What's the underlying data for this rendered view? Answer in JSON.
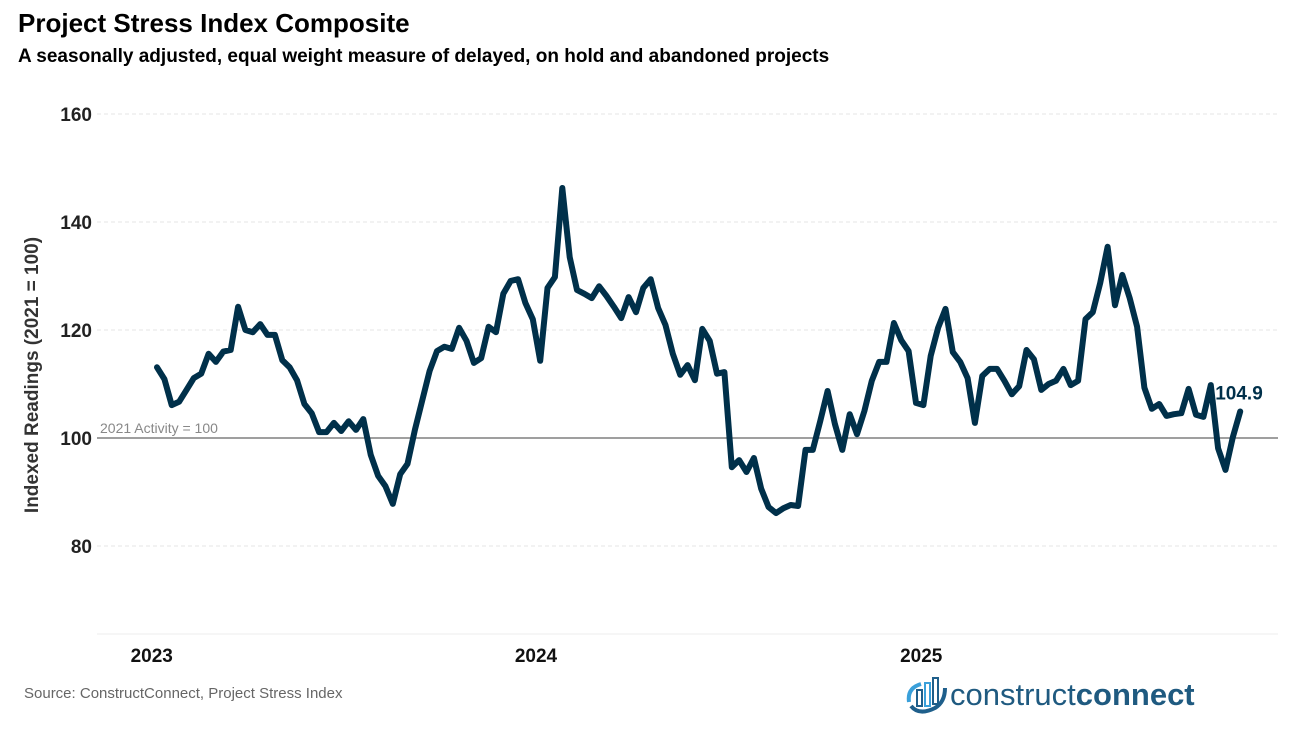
{
  "chart_data": {
    "type": "line",
    "title": "Project Stress Index Composite",
    "subtitle": "A seasonally adjusted, equal weight measure of delayed, on hold and abandoned projects",
    "xlabel": "",
    "ylabel": "Indexed Readings (2021 = 100)",
    "ylim": [
      62,
      162
    ],
    "yticks": [
      80,
      100,
      120,
      140,
      160
    ],
    "xticks": [
      "2023",
      "2024",
      "2025"
    ],
    "grid": true,
    "reference_line": {
      "value": 100,
      "label": "2021 Activity = 100"
    },
    "last_value_label": "104.9",
    "line_color": "#00304a",
    "x": [
      "2023-01-06",
      "2023-01-13",
      "2023-01-20",
      "2023-01-27",
      "2023-02-03",
      "2023-02-10",
      "2023-02-17",
      "2023-02-24",
      "2023-03-03",
      "2023-03-10",
      "2023-03-17",
      "2023-03-24",
      "2023-03-31",
      "2023-04-07",
      "2023-04-14",
      "2023-04-21",
      "2023-04-28",
      "2023-05-05",
      "2023-05-12",
      "2023-05-19",
      "2023-05-26",
      "2023-06-02",
      "2023-06-09",
      "2023-06-16",
      "2023-06-23",
      "2023-06-30",
      "2023-07-07",
      "2023-07-14",
      "2023-07-21",
      "2023-07-28",
      "2023-08-04",
      "2023-08-11",
      "2023-08-18",
      "2023-08-25",
      "2023-09-01",
      "2023-09-08",
      "2023-09-15",
      "2023-09-22",
      "2023-09-29",
      "2023-10-06",
      "2023-10-13",
      "2023-10-20",
      "2023-10-27",
      "2023-11-03",
      "2023-11-10",
      "2023-11-17",
      "2023-11-24",
      "2023-12-01",
      "2023-12-08",
      "2023-12-15",
      "2023-12-22",
      "2023-12-29",
      "2024-01-05",
      "2024-01-12",
      "2024-01-19",
      "2024-01-26",
      "2024-02-02",
      "2024-02-09",
      "2024-02-16",
      "2024-02-23",
      "2024-03-01",
      "2024-03-08",
      "2024-03-15",
      "2024-03-22",
      "2024-03-29",
      "2024-04-05",
      "2024-04-12",
      "2024-04-19",
      "2024-04-26",
      "2024-05-03",
      "2024-05-10",
      "2024-05-17",
      "2024-05-24",
      "2024-05-31",
      "2024-06-07",
      "2024-06-14",
      "2024-06-21",
      "2024-06-28",
      "2024-07-05",
      "2024-07-12",
      "2024-07-19",
      "2024-07-26",
      "2024-08-02",
      "2024-08-09",
      "2024-08-16",
      "2024-08-23",
      "2024-08-30",
      "2024-09-06",
      "2024-09-13",
      "2024-09-20",
      "2024-09-27",
      "2024-10-04",
      "2024-10-11",
      "2024-10-18",
      "2024-10-25",
      "2024-11-01",
      "2024-11-08",
      "2024-11-15",
      "2024-11-22",
      "2024-11-29",
      "2024-12-06",
      "2024-12-13",
      "2024-12-20",
      "2024-12-27",
      "2025-01-03",
      "2025-01-10",
      "2025-01-17",
      "2025-01-24",
      "2025-01-31",
      "2025-02-07",
      "2025-02-14",
      "2025-02-21",
      "2025-02-28",
      "2025-03-07",
      "2025-03-14",
      "2025-03-21",
      "2025-03-28",
      "2025-04-04",
      "2025-04-11",
      "2025-04-18",
      "2025-04-25",
      "2025-05-02",
      "2025-05-09",
      "2025-05-16",
      "2025-05-23",
      "2025-05-30",
      "2025-06-06",
      "2025-06-13",
      "2025-06-20",
      "2025-06-27",
      "2025-07-04",
      "2025-07-11",
      "2025-07-18",
      "2025-07-25",
      "2025-08-01",
      "2025-08-08",
      "2025-08-15",
      "2025-08-22",
      "2025-08-29",
      "2025-09-05",
      "2025-09-12",
      "2025-09-19",
      "2025-09-26",
      "2025-10-03",
      "2025-10-10",
      "2025-10-17",
      "2025-10-24",
      "2025-10-31"
    ],
    "values": [
      113.1,
      110.9,
      106.1,
      106.7,
      108.9,
      111.1,
      111.9,
      115.6,
      114.1,
      116.0,
      116.3,
      124.3,
      120.0,
      119.6,
      121.1,
      119.1,
      119.1,
      114.4,
      113.1,
      110.7,
      106.3,
      104.6,
      101.1,
      101.1,
      102.8,
      101.3,
      103.1,
      101.5,
      103.5,
      96.9,
      93.0,
      91.1,
      87.8,
      93.3,
      95.2,
      101.5,
      107.0,
      112.4,
      116.1,
      116.9,
      116.5,
      120.4,
      118.0,
      113.9,
      114.8,
      120.6,
      119.6,
      126.7,
      129.1,
      129.4,
      125.0,
      122.0,
      114.3,
      127.8,
      129.8,
      146.3,
      133.5,
      127.4,
      126.7,
      125.9,
      128.1,
      126.3,
      124.3,
      122.2,
      126.1,
      123.3,
      127.8,
      129.4,
      124.1,
      120.9,
      115.6,
      111.7,
      113.5,
      110.7,
      120.2,
      118.0,
      111.9,
      112.2,
      94.6,
      95.9,
      93.7,
      96.3,
      90.6,
      87.2,
      86.1,
      87.0,
      87.6,
      87.4,
      97.8,
      97.8,
      103.1,
      108.7,
      102.6,
      97.8,
      104.4,
      100.7,
      105.0,
      110.6,
      114.1,
      114.1,
      121.3,
      118.1,
      116.1,
      106.5,
      106.1,
      115.2,
      120.4,
      123.9,
      115.9,
      114.1,
      111.1,
      102.8,
      111.5,
      112.8,
      112.8,
      110.6,
      108.1,
      109.6,
      116.3,
      114.6,
      108.9,
      110.0,
      110.6,
      112.8,
      109.8,
      110.6,
      122.0,
      123.3,
      128.7,
      135.4,
      124.6,
      130.2,
      125.9,
      120.6,
      109.3,
      105.4,
      106.3,
      104.1,
      104.4,
      104.6,
      109.1,
      104.3,
      103.9,
      109.8,
      98.1,
      94.1,
      100.2,
      104.9
    ]
  },
  "source": "Source: ConstructConnect, Project Stress Index",
  "logo": {
    "text_light": "construct",
    "text_bold": "connect"
  }
}
